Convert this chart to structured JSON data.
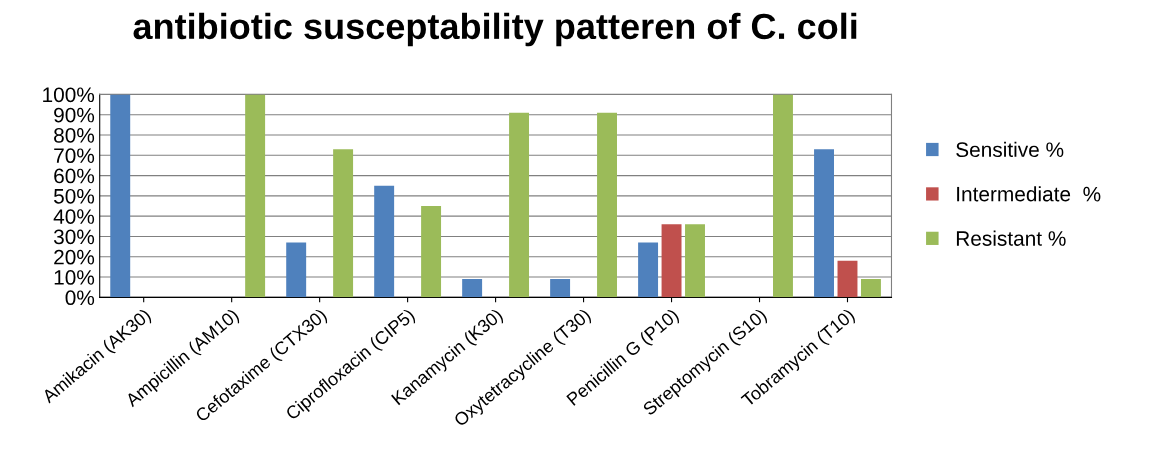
{
  "chart_data": {
    "type": "bar",
    "title": "antibiotic susceptability patteren of C. coli",
    "categories": [
      "Amikacin (AK30)",
      "Ampicillin (AM10)",
      "Cefotaxime (CTX30)",
      "Ciprofloxacin (CIP5)",
      "Kanamycin (K30)",
      "Oxytetracycline (T30)",
      "Penicillin G (P10)",
      "Streptomycin (S10)",
      "Tobramycin (T10)"
    ],
    "series": [
      {
        "name": "Sensitive %",
        "color": "#4f81bd",
        "values": [
          100,
          0,
          27,
          55,
          9,
          9,
          27,
          0,
          73
        ]
      },
      {
        "name": "Intermediate  %",
        "color": "#c0504d",
        "values": [
          0,
          0,
          0,
          0,
          0,
          0,
          36,
          0,
          18
        ]
      },
      {
        "name": "Resistant %",
        "color": "#9bbb59",
        "values": [
          0,
          100,
          73,
          45,
          91,
          91,
          36,
          100,
          9
        ]
      }
    ],
    "ylim": [
      0,
      100
    ],
    "yticks": [
      {
        "value": 0,
        "label": "0%"
      },
      {
        "value": 10,
        "label": "10%"
      },
      {
        "value": 20,
        "label": "20%"
      },
      {
        "value": 30,
        "label": "30%"
      },
      {
        "value": 40,
        "label": "40%"
      },
      {
        "value": 50,
        "label": "50%"
      },
      {
        "value": 60,
        "label": "60%"
      },
      {
        "value": 70,
        "label": "70%"
      },
      {
        "value": 80,
        "label": "80%"
      },
      {
        "value": 90,
        "label": "90%"
      },
      {
        "value": 100,
        "label": "100%"
      }
    ],
    "grid": "y",
    "legend": "right"
  }
}
